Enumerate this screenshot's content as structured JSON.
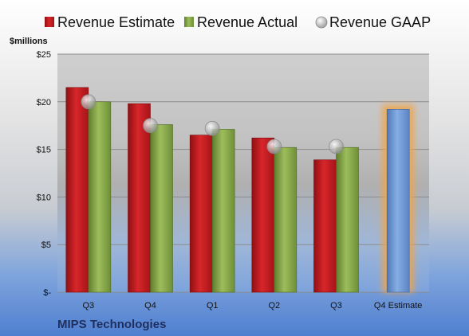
{
  "chart_data": {
    "type": "bar",
    "company": "MIPS Technologies",
    "ylabel": "$millions",
    "ylim": [
      0,
      25
    ],
    "yticks": [
      0,
      5,
      10,
      15,
      20,
      25
    ],
    "ytick_labels": [
      "$-",
      "$5",
      "$10",
      "$15",
      "$20",
      "$25"
    ],
    "categories": [
      "Q3",
      "Q4",
      "Q1",
      "Q2",
      "Q3",
      "Q4 Estimate"
    ],
    "grid": true,
    "legend_position": "top",
    "series": [
      {
        "name": "Revenue Estimate",
        "kind": "bar",
        "color": "#c0181c",
        "values": [
          21.5,
          19.8,
          16.5,
          16.2,
          13.9,
          null
        ]
      },
      {
        "name": "Revenue Actual",
        "kind": "bar",
        "color": "#86a84a",
        "values": [
          20.0,
          17.6,
          17.1,
          15.2,
          15.2,
          19.2
        ]
      },
      {
        "name": "Revenue GAAP",
        "kind": "marker",
        "color": "#b8b8b8",
        "values": [
          20.0,
          17.5,
          17.2,
          15.3,
          15.3,
          null
        ]
      }
    ],
    "highlight": {
      "category_index": 5,
      "bar_color": "#6d96cf",
      "glow_color": "#f0a54a"
    }
  }
}
